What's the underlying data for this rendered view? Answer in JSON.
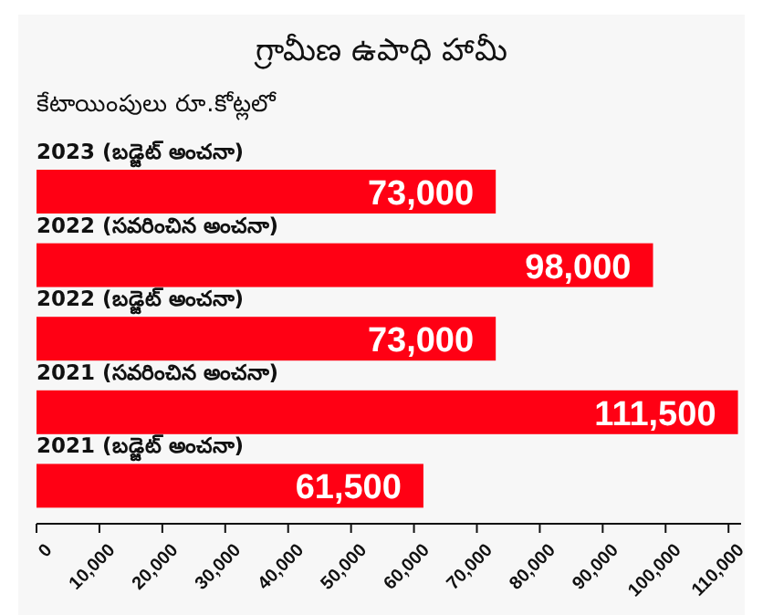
{
  "chart_data": {
    "type": "bar",
    "orientation": "horizontal",
    "title": "గ్రామీణ ఉపాధి హామీ",
    "subtitle": "కేటాయింపులు రూ.కోట్లలో",
    "categories": [
      "2023 (బడ్జెట్ అంచనా)",
      "2022 (సవరించిన అంచనా)",
      "2022 (బడ్జెట్ అంచనా)",
      "2021 (సవరించిన అంచనా)",
      "2021 (బడ్జెట్ అంచనా)"
    ],
    "values": [
      73000,
      98000,
      73000,
      111500,
      61500
    ],
    "color": "#ff0014",
    "value_labels": [
      "73,000",
      "98,000",
      "73,000",
      "111,500",
      "61,500"
    ],
    "grid": false,
    "xlim": [
      0,
      112000
    ],
    "xticks": [
      0,
      {
        "value": 10000,
        "label": "10,000"
      },
      {
        "value": 20000,
        "label": "20,000"
      },
      {
        "value": 30000,
        "label": "30,000"
      },
      {
        "value": 40000,
        "label": "40,000"
      },
      {
        "value": 50000,
        "label": "50,000"
      },
      {
        "value": 60000,
        "label": "60,000"
      },
      {
        "value": 70000,
        "label": "70,000"
      },
      {
        "value": 80000,
        "label": "80,000"
      },
      {
        "value": 90000,
        "label": "90,000"
      },
      {
        "value": 100000,
        "label": "100,000"
      },
      {
        "value": 110000,
        "label": "110,000"
      }
    ]
  }
}
